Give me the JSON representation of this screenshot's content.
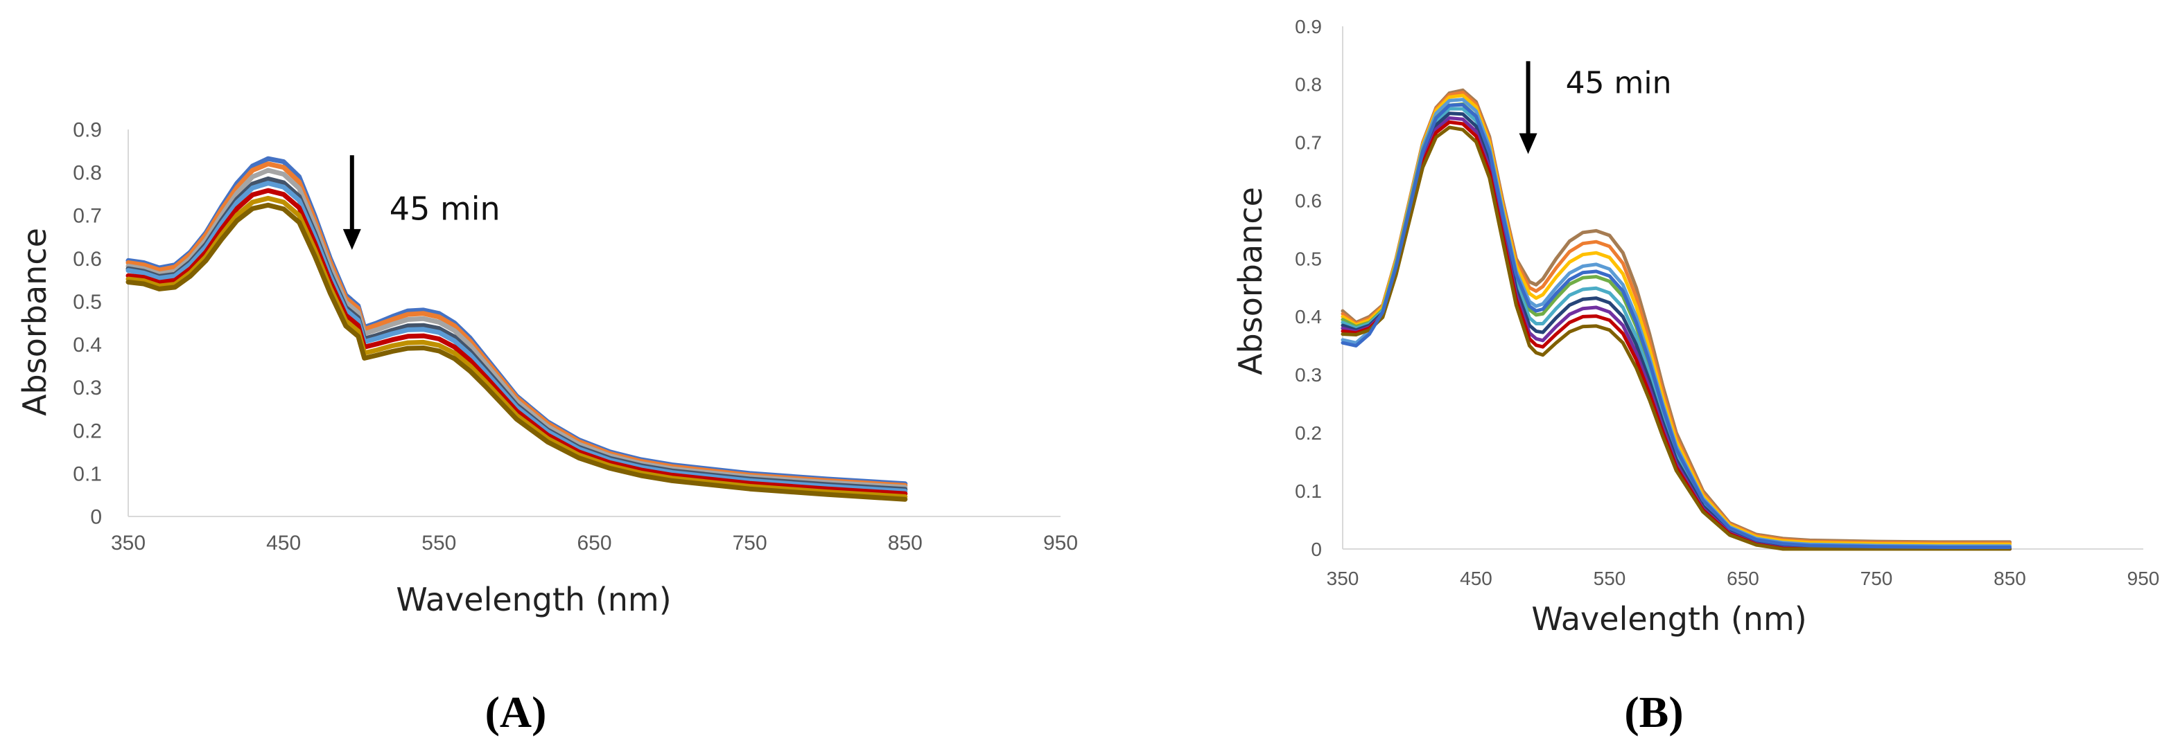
{
  "chart_data": [
    {
      "panel": "(A)",
      "type": "line",
      "title": "",
      "xlabel": "Wavelength (nm)",
      "ylabel": "Absorbance",
      "xlim": [
        350,
        950
      ],
      "ylim": [
        0,
        0.9
      ],
      "xticks": [
        350,
        450,
        550,
        650,
        750,
        850,
        950
      ],
      "yticks": [
        0,
        0.1,
        0.2,
        0.3,
        0.4,
        0.5,
        0.6,
        0.7,
        0.8,
        0.9
      ],
      "grid": false,
      "legend": "none",
      "annotation": {
        "text": "45 min",
        "arrow": "down",
        "x": 494,
        "y_from": 0.84,
        "y_to": 0.62
      },
      "x": [
        350,
        360,
        370,
        380,
        390,
        400,
        410,
        420,
        430,
        440,
        450,
        460,
        470,
        480,
        490,
        498,
        502,
        510,
        520,
        530,
        540,
        550,
        560,
        570,
        580,
        590,
        600,
        620,
        640,
        660,
        680,
        700,
        750,
        800,
        850
      ],
      "series": [
        {
          "color": "#4472C4",
          "values": [
            0.595,
            0.59,
            0.578,
            0.585,
            0.615,
            0.66,
            0.72,
            0.775,
            0.815,
            0.832,
            0.825,
            0.79,
            0.7,
            0.6,
            0.515,
            0.49,
            0.44,
            0.45,
            0.465,
            0.478,
            0.48,
            0.472,
            0.45,
            0.415,
            0.37,
            0.325,
            0.28,
            0.22,
            0.178,
            0.15,
            0.132,
            0.12,
            0.1,
            0.087,
            0.076
          ]
        },
        {
          "color": "#ED7D31",
          "values": [
            0.59,
            0.585,
            0.573,
            0.58,
            0.61,
            0.655,
            0.713,
            0.765,
            0.805,
            0.82,
            0.812,
            0.778,
            0.69,
            0.592,
            0.508,
            0.484,
            0.435,
            0.445,
            0.458,
            0.47,
            0.472,
            0.464,
            0.443,
            0.408,
            0.364,
            0.32,
            0.276,
            0.216,
            0.174,
            0.146,
            0.128,
            0.116,
            0.096,
            0.083,
            0.072
          ]
        },
        {
          "color": "#A5A5A5",
          "values": [
            0.582,
            0.576,
            0.564,
            0.57,
            0.6,
            0.643,
            0.7,
            0.752,
            0.79,
            0.805,
            0.796,
            0.763,
            0.677,
            0.58,
            0.498,
            0.474,
            0.425,
            0.434,
            0.447,
            0.458,
            0.46,
            0.452,
            0.432,
            0.398,
            0.355,
            0.312,
            0.268,
            0.209,
            0.168,
            0.141,
            0.123,
            0.111,
            0.092,
            0.079,
            0.068
          ]
        },
        {
          "color": "#44546A",
          "values": [
            0.576,
            0.57,
            0.558,
            0.563,
            0.592,
            0.633,
            0.688,
            0.738,
            0.773,
            0.785,
            0.776,
            0.744,
            0.66,
            0.566,
            0.486,
            0.462,
            0.413,
            0.421,
            0.433,
            0.443,
            0.444,
            0.437,
            0.417,
            0.384,
            0.343,
            0.301,
            0.259,
            0.201,
            0.161,
            0.135,
            0.118,
            0.106,
            0.087,
            0.074,
            0.063
          ]
        },
        {
          "color": "#5B9BD5",
          "values": [
            0.572,
            0.566,
            0.554,
            0.559,
            0.587,
            0.627,
            0.681,
            0.73,
            0.764,
            0.775,
            0.766,
            0.735,
            0.652,
            0.559,
            0.48,
            0.456,
            0.406,
            0.414,
            0.425,
            0.434,
            0.435,
            0.428,
            0.408,
            0.376,
            0.336,
            0.295,
            0.254,
            0.197,
            0.157,
            0.131,
            0.114,
            0.102,
            0.083,
            0.07,
            0.059
          ]
        },
        {
          "color": "#C00000",
          "values": [
            0.56,
            0.556,
            0.544,
            0.549,
            0.576,
            0.615,
            0.668,
            0.716,
            0.748,
            0.758,
            0.749,
            0.718,
            0.637,
            0.546,
            0.468,
            0.444,
            0.394,
            0.401,
            0.411,
            0.419,
            0.42,
            0.413,
            0.394,
            0.363,
            0.325,
            0.285,
            0.245,
            0.189,
            0.15,
            0.125,
            0.108,
            0.096,
            0.077,
            0.064,
            0.053
          ]
        },
        {
          "color": "#BF9000",
          "values": [
            0.552,
            0.548,
            0.536,
            0.54,
            0.567,
            0.604,
            0.655,
            0.701,
            0.731,
            0.74,
            0.731,
            0.7,
            0.621,
            0.532,
            0.455,
            0.431,
            0.38,
            0.387,
            0.397,
            0.404,
            0.405,
            0.398,
            0.38,
            0.35,
            0.313,
            0.274,
            0.235,
            0.181,
            0.143,
            0.118,
            0.101,
            0.089,
            0.07,
            0.057,
            0.046
          ]
        },
        {
          "color": "#806000",
          "values": [
            0.545,
            0.541,
            0.529,
            0.533,
            0.559,
            0.595,
            0.644,
            0.688,
            0.716,
            0.724,
            0.715,
            0.684,
            0.606,
            0.519,
            0.443,
            0.419,
            0.368,
            0.375,
            0.384,
            0.391,
            0.392,
            0.385,
            0.367,
            0.338,
            0.302,
            0.264,
            0.226,
            0.173,
            0.136,
            0.112,
            0.095,
            0.083,
            0.064,
            0.051,
            0.04
          ]
        }
      ]
    },
    {
      "panel": "(B)",
      "type": "line",
      "title": "",
      "xlabel": "Wavelength (nm)",
      "ylabel": "Absorbance",
      "xlim": [
        350,
        950
      ],
      "ylim": [
        0,
        0.9
      ],
      "xticks": [
        350,
        450,
        550,
        650,
        750,
        850,
        950
      ],
      "yticks": [
        0,
        0.1,
        0.2,
        0.3,
        0.4,
        0.5,
        0.6,
        0.7,
        0.8,
        0.9
      ],
      "grid": false,
      "legend": "none",
      "annotation": {
        "text": "45 min",
        "arrow": "down",
        "x": 489,
        "y_from": 0.84,
        "y_to": 0.68
      },
      "x": [
        350,
        360,
        370,
        380,
        390,
        400,
        410,
        420,
        430,
        440,
        450,
        460,
        470,
        480,
        490,
        495,
        500,
        510,
        520,
        530,
        540,
        550,
        560,
        570,
        580,
        590,
        600,
        620,
        640,
        660,
        680,
        700,
        750,
        800,
        850
      ],
      "series": [
        {
          "color": "#A67C52",
          "values": [
            0.41,
            0.39,
            0.4,
            0.42,
            0.5,
            0.6,
            0.7,
            0.76,
            0.785,
            0.79,
            0.77,
            0.71,
            0.6,
            0.5,
            0.46,
            0.455,
            0.465,
            0.5,
            0.53,
            0.545,
            0.548,
            0.54,
            0.51,
            0.45,
            0.37,
            0.28,
            0.2,
            0.1,
            0.045,
            0.025,
            0.018,
            0.015,
            0.013,
            0.012,
            0.012
          ]
        },
        {
          "color": "#ED7D31",
          "values": [
            0.405,
            0.388,
            0.397,
            0.418,
            0.498,
            0.598,
            0.698,
            0.758,
            0.782,
            0.786,
            0.766,
            0.705,
            0.595,
            0.495,
            0.45,
            0.444,
            0.452,
            0.484,
            0.512,
            0.526,
            0.529,
            0.521,
            0.492,
            0.434,
            0.357,
            0.27,
            0.193,
            0.096,
            0.043,
            0.023,
            0.016,
            0.013,
            0.011,
            0.01,
            0.01
          ]
        },
        {
          "color": "#FFC000",
          "values": [
            0.4,
            0.386,
            0.394,
            0.416,
            0.496,
            0.596,
            0.696,
            0.755,
            0.778,
            0.781,
            0.761,
            0.7,
            0.59,
            0.488,
            0.44,
            0.432,
            0.438,
            0.468,
            0.494,
            0.507,
            0.51,
            0.502,
            0.474,
            0.418,
            0.344,
            0.26,
            0.186,
            0.092,
            0.041,
            0.021,
            0.014,
            0.011,
            0.009,
            0.008,
            0.008
          ]
        },
        {
          "color": "#5B9BD5",
          "values": [
            0.36,
            0.355,
            0.375,
            0.41,
            0.492,
            0.592,
            0.692,
            0.75,
            0.772,
            0.774,
            0.754,
            0.692,
            0.582,
            0.478,
            0.426,
            0.418,
            0.422,
            0.45,
            0.475,
            0.487,
            0.49,
            0.482,
            0.455,
            0.4,
            0.329,
            0.249,
            0.177,
            0.087,
            0.038,
            0.018,
            0.011,
            0.008,
            0.006,
            0.005,
            0.005
          ]
        },
        {
          "color": "#70AD47",
          "values": [
            0.395,
            0.383,
            0.39,
            0.412,
            0.49,
            0.588,
            0.686,
            0.743,
            0.764,
            0.766,
            0.745,
            0.683,
            0.573,
            0.468,
            0.412,
            0.403,
            0.405,
            0.432,
            0.456,
            0.467,
            0.469,
            0.461,
            0.435,
            0.383,
            0.315,
            0.238,
            0.169,
            0.082,
            0.035,
            0.015,
            0.008,
            0.005,
            0.003,
            0.002,
            0.002
          ]
        },
        {
          "color": "#4BACC6",
          "values": [
            0.39,
            0.38,
            0.388,
            0.41,
            0.487,
            0.584,
            0.681,
            0.737,
            0.758,
            0.758,
            0.737,
            0.675,
            0.565,
            0.458,
            0.398,
            0.388,
            0.388,
            0.414,
            0.437,
            0.447,
            0.449,
            0.441,
            0.416,
            0.366,
            0.301,
            0.227,
            0.161,
            0.078,
            0.032,
            0.012,
            0.005,
            0.003,
            0.002,
            0.001,
            0.001
          ]
        },
        {
          "color": "#264478",
          "values": [
            0.385,
            0.377,
            0.385,
            0.407,
            0.483,
            0.579,
            0.675,
            0.73,
            0.75,
            0.749,
            0.728,
            0.666,
            0.556,
            0.448,
            0.385,
            0.375,
            0.373,
            0.398,
            0.42,
            0.43,
            0.432,
            0.424,
            0.4,
            0.352,
            0.289,
            0.218,
            0.154,
            0.074,
            0.03,
            0.01,
            0.003,
            0.001,
            0.001,
            0.0,
            0.0
          ]
        },
        {
          "color": "#7030A0",
          "values": [
            0.38,
            0.374,
            0.382,
            0.404,
            0.479,
            0.574,
            0.669,
            0.723,
            0.742,
            0.74,
            0.719,
            0.657,
            0.547,
            0.438,
            0.372,
            0.362,
            0.359,
            0.383,
            0.404,
            0.414,
            0.416,
            0.408,
            0.385,
            0.338,
            0.277,
            0.209,
            0.147,
            0.07,
            0.028,
            0.009,
            0.002,
            0.0,
            0.0,
            0.0,
            0.0
          ]
        },
        {
          "color": "#C00000",
          "values": [
            0.375,
            0.372,
            0.38,
            0.402,
            0.476,
            0.57,
            0.664,
            0.717,
            0.735,
            0.732,
            0.711,
            0.649,
            0.539,
            0.43,
            0.362,
            0.351,
            0.348,
            0.37,
            0.39,
            0.4,
            0.401,
            0.394,
            0.371,
            0.326,
            0.267,
            0.201,
            0.141,
            0.067,
            0.026,
            0.008,
            0.001,
            0.0,
            0.0,
            0.0,
            0.0
          ]
        },
        {
          "color": "#806000",
          "values": [
            0.37,
            0.369,
            0.377,
            0.399,
            0.472,
            0.565,
            0.657,
            0.709,
            0.726,
            0.722,
            0.701,
            0.639,
            0.529,
            0.42,
            0.35,
            0.338,
            0.334,
            0.355,
            0.374,
            0.383,
            0.384,
            0.377,
            0.355,
            0.312,
            0.256,
            0.193,
            0.135,
            0.064,
            0.024,
            0.007,
            0.0,
            0.0,
            0.0,
            0.0,
            0.0
          ]
        },
        {
          "color": "#3A6BC8",
          "values": [
            0.355,
            0.35,
            0.37,
            0.408,
            0.486,
            0.585,
            0.684,
            0.742,
            0.764,
            0.765,
            0.745,
            0.684,
            0.575,
            0.472,
            0.418,
            0.41,
            0.413,
            0.44,
            0.464,
            0.476,
            0.478,
            0.47,
            0.444,
            0.39,
            0.321,
            0.243,
            0.172,
            0.084,
            0.036,
            0.016,
            0.009,
            0.006,
            0.004,
            0.003,
            0.003
          ]
        }
      ]
    }
  ],
  "panels": {
    "a": {
      "label": "(A)"
    },
    "b": {
      "label": "(B)"
    }
  }
}
